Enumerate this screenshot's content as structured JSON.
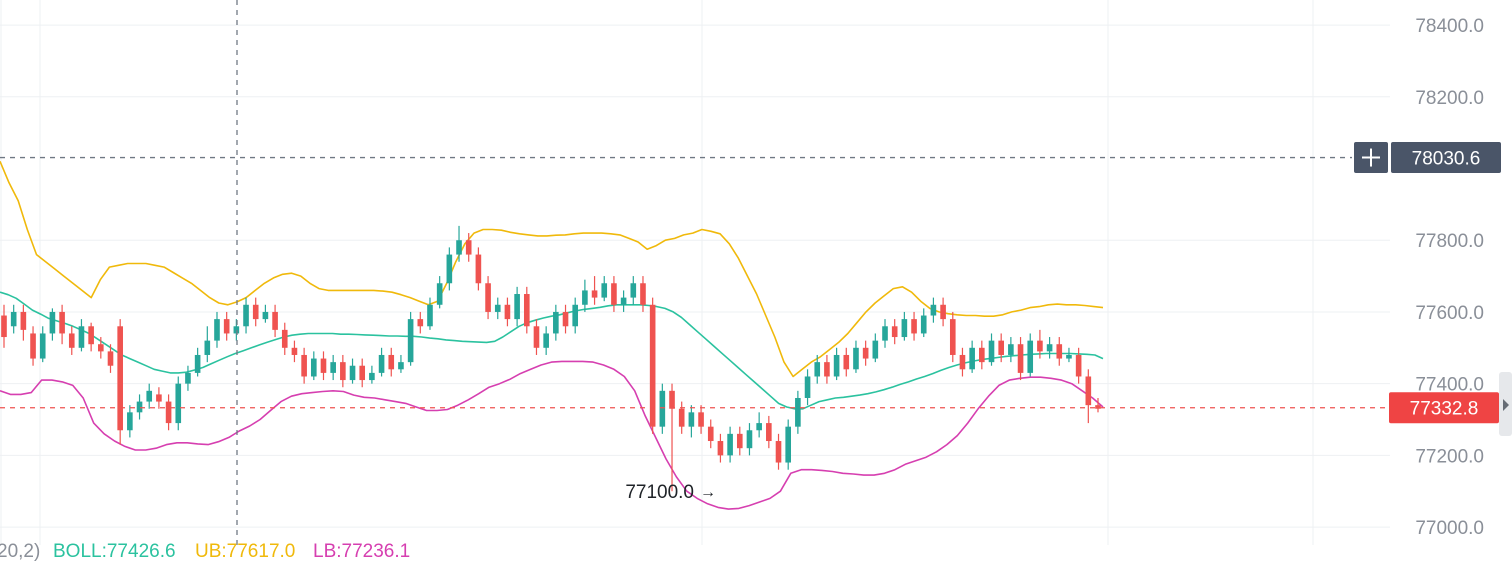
{
  "colors": {
    "up": "#26a69a",
    "down": "#ef5350",
    "boll": "#2bc29f",
    "ub": "#f0b90b",
    "lb": "#d63fb0",
    "crosshair_badge": "#4a5568",
    "last_price_badge": "#ef4444",
    "grid": "#eef0f3",
    "axis_text": "#8a8f98"
  },
  "price_axis": {
    "labels": [
      "78400.0",
      "78200.0",
      "77800.0",
      "77600.0",
      "77400.0",
      "77200.0",
      "77000.0"
    ],
    "ticks": [
      78400,
      78200,
      77800,
      77600,
      77400,
      77200,
      77000
    ],
    "range": [
      76950,
      78470
    ]
  },
  "crosshair": {
    "price": 78030.6,
    "label": "78030.6",
    "plus_icon": "plus-icon"
  },
  "last_price": {
    "price": 77332.8,
    "label": "77332.8"
  },
  "low_marker": {
    "price": 77100.0,
    "label": "77100.0",
    "arrow": "→"
  },
  "legend": {
    "params": "20,2)",
    "boll": "BOLL:77426.6",
    "ub": "UB:77617.0",
    "lb": "LB:77236.1"
  },
  "chart_data": {
    "type": "candlestick",
    "indicator": "BOLL",
    "series": [
      {
        "name": "BOLL",
        "values": [
          77655,
          77648,
          77638,
          77622,
          77605,
          77594,
          77582,
          77575,
          77568,
          77560,
          77550,
          77540,
          77525,
          77510,
          77495,
          77480,
          77470,
          77460,
          77450,
          77440,
          77435,
          77430,
          77430,
          77432,
          77438,
          77445,
          77455,
          77465,
          77475,
          77484,
          77492,
          77500,
          77508,
          77516,
          77523,
          77530,
          77535,
          77538,
          77540,
          77540,
          77540,
          77540,
          77538,
          77538,
          77537,
          77536,
          77535,
          77534,
          77533,
          77533,
          77532,
          77532,
          77530,
          77527,
          77525,
          77522,
          77520,
          77518,
          77517,
          77516,
          77515,
          77518,
          77530,
          77545,
          77560,
          77570,
          77577,
          77583,
          77588,
          77592,
          77598,
          77603,
          77607,
          77610,
          77613,
          77617,
          77620,
          77620,
          77620,
          77620,
          77618,
          77615,
          77610,
          77600,
          77585,
          77565,
          77545,
          77525,
          77505,
          77485,
          77465,
          77445,
          77425,
          77405,
          77385,
          77365,
          77345,
          77335,
          77330,
          77330,
          77340,
          77350,
          77355,
          77360,
          77362,
          77365,
          77368,
          77372,
          77377,
          77383,
          77390,
          77398,
          77405,
          77413,
          77420,
          77428,
          77437,
          77445,
          77452,
          77458,
          77463,
          77467,
          77470,
          77473,
          77476,
          77478,
          77480,
          77482,
          77483,
          77484,
          77484,
          77484,
          77484,
          77483,
          77482,
          77480,
          77470
        ]
      },
      {
        "name": "UB",
        "values": [
          78020,
          77960,
          77910,
          77830,
          77760,
          77740,
          77720,
          77700,
          77680,
          77660,
          77640,
          77690,
          77725,
          77730,
          77735,
          77735,
          77735,
          77730,
          77725,
          77710,
          77695,
          77680,
          77660,
          77640,
          77625,
          77620,
          77628,
          77640,
          77660,
          77680,
          77695,
          77705,
          77708,
          77700,
          77680,
          77665,
          77660,
          77660,
          77660,
          77660,
          77660,
          77660,
          77658,
          77655,
          77648,
          77640,
          77630,
          77620,
          77630,
          77680,
          77740,
          77790,
          77820,
          77830,
          77830,
          77828,
          77822,
          77818,
          77815,
          77812,
          77812,
          77814,
          77815,
          77818,
          77820,
          77820,
          77820,
          77818,
          77815,
          77805,
          77795,
          77775,
          77785,
          77800,
          77805,
          77815,
          77820,
          77830,
          77825,
          77818,
          77790,
          77750,
          77700,
          77650,
          77590,
          77530,
          77460,
          77420,
          77440,
          77460,
          77475,
          77495,
          77515,
          77540,
          77570,
          77600,
          77625,
          77645,
          77665,
          77670,
          77655,
          77630,
          77610,
          77600,
          77595,
          77592,
          77590,
          77590,
          77588,
          77588,
          77592,
          77600,
          77605,
          77612,
          77615,
          77620,
          77622,
          77620,
          77620,
          77618,
          77615,
          77612
        ]
      },
      {
        "name": "LB",
        "values": [
          77380,
          77370,
          77370,
          77375,
          77410,
          77410,
          77405,
          77395,
          77360,
          77290,
          77260,
          77240,
          77225,
          77215,
          77215,
          77220,
          77230,
          77235,
          77235,
          77232,
          77230,
          77238,
          77250,
          77268,
          77282,
          77300,
          77325,
          77350,
          77365,
          77372,
          77375,
          77378,
          77380,
          77378,
          77368,
          77362,
          77360,
          77355,
          77350,
          77345,
          77335,
          77325,
          77325,
          77328,
          77340,
          77355,
          77372,
          77390,
          77400,
          77412,
          77428,
          77440,
          77452,
          77460,
          77462,
          77462,
          77462,
          77460,
          77452,
          77440,
          77420,
          77380,
          77310,
          77250,
          77190,
          77140,
          77100,
          77080,
          77065,
          77055,
          77050,
          77052,
          77060,
          77070,
          77080,
          77100,
          77150,
          77160,
          77160,
          77158,
          77155,
          77150,
          77148,
          77145,
          77145,
          77150,
          77160,
          77175,
          77185,
          77195,
          77210,
          77230,
          77255,
          77290,
          77330,
          77365,
          77395,
          77410,
          77415,
          77418,
          77418,
          77415,
          77410,
          77400,
          77380,
          77360,
          77335
        ]
      }
    ],
    "candles_open_close_high_low": [
      [
        77590,
        77530,
        77620,
        77500
      ],
      [
        77560,
        77600,
        77620,
        77540
      ],
      [
        77600,
        77550,
        77620,
        77520
      ],
      [
        77540,
        77470,
        77560,
        77450
      ],
      [
        77470,
        77540,
        77560,
        77460
      ],
      [
        77540,
        77600,
        77610,
        77520
      ],
      [
        77600,
        77540,
        77620,
        77510
      ],
      [
        77540,
        77500,
        77560,
        77480
      ],
      [
        77500,
        77560,
        77580,
        77490
      ],
      [
        77560,
        77510,
        77570,
        77490
      ],
      [
        77510,
        77490,
        77530,
        77470
      ],
      [
        77490,
        77450,
        77510,
        77430
      ],
      [
        77560,
        77270,
        77580,
        77230
      ],
      [
        77270,
        77320,
        77340,
        77250
      ],
      [
        77320,
        77350,
        77370,
        77300
      ],
      [
        77350,
        77380,
        77400,
        77330
      ],
      [
        77370,
        77350,
        77390,
        77330
      ],
      [
        77350,
        77290,
        77370,
        77270
      ],
      [
        77290,
        77400,
        77420,
        77270
      ],
      [
        77400,
        77430,
        77450,
        77380
      ],
      [
        77430,
        77480,
        77500,
        77420
      ],
      [
        77480,
        77520,
        77560,
        77460
      ],
      [
        77520,
        77580,
        77600,
        77500
      ],
      [
        77580,
        77540,
        77600,
        77520
      ],
      [
        77540,
        77560,
        77580,
        77520
      ],
      [
        77560,
        77620,
        77640,
        77540
      ],
      [
        77620,
        77580,
        77640,
        77560
      ],
      [
        77580,
        77600,
        77620,
        77570
      ],
      [
        77600,
        77550,
        77620,
        77530
      ],
      [
        77550,
        77500,
        77570,
        77480
      ],
      [
        77500,
        77480,
        77520,
        77460
      ],
      [
        77480,
        77420,
        77500,
        77400
      ],
      [
        77420,
        77470,
        77490,
        77410
      ],
      [
        77470,
        77430,
        77490,
        77410
      ],
      [
        77430,
        77460,
        77480,
        77410
      ],
      [
        77460,
        77410,
        77480,
        77390
      ],
      [
        77410,
        77450,
        77470,
        77400
      ],
      [
        77450,
        77410,
        77470,
        77390
      ],
      [
        77410,
        77430,
        77450,
        77400
      ],
      [
        77430,
        77480,
        77500,
        77420
      ],
      [
        77480,
        77440,
        77500,
        77420
      ],
      [
        77440,
        77460,
        77480,
        77430
      ],
      [
        77460,
        77580,
        77600,
        77450
      ],
      [
        77580,
        77560,
        77600,
        77540
      ],
      [
        77560,
        77620,
        77640,
        77550
      ],
      [
        77620,
        77680,
        77700,
        77610
      ],
      [
        77680,
        77760,
        77780,
        77660
      ],
      [
        77760,
        77800,
        77840,
        77740
      ],
      [
        77800,
        77760,
        77820,
        77740
      ],
      [
        77760,
        77680,
        77780,
        77660
      ],
      [
        77680,
        77600,
        77700,
        77580
      ],
      [
        77600,
        77620,
        77640,
        77580
      ],
      [
        77620,
        77580,
        77640,
        77560
      ],
      [
        77580,
        77650,
        77670,
        77560
      ],
      [
        77650,
        77560,
        77670,
        77540
      ],
      [
        77560,
        77500,
        77580,
        77480
      ],
      [
        77500,
        77540,
        77560,
        77480
      ],
      [
        77540,
        77600,
        77620,
        77520
      ],
      [
        77600,
        77560,
        77620,
        77540
      ],
      [
        77560,
        77620,
        77640,
        77540
      ],
      [
        77620,
        77660,
        77690,
        77600
      ],
      [
        77660,
        77640,
        77700,
        77620
      ],
      [
        77640,
        77680,
        77700,
        77630
      ],
      [
        77680,
        77620,
        77700,
        77600
      ],
      [
        77620,
        77640,
        77660,
        77600
      ],
      [
        77640,
        77680,
        77700,
        77620
      ],
      [
        77680,
        77620,
        77700,
        77600
      ],
      [
        77620,
        77280,
        77640,
        77260
      ],
      [
        77280,
        77380,
        77400,
        77260
      ],
      [
        77380,
        77330,
        77400,
        77100
      ],
      [
        77330,
        77280,
        77350,
        77260
      ],
      [
        77280,
        77320,
        77340,
        77250
      ],
      [
        77320,
        77280,
        77340,
        77260
      ],
      [
        77280,
        77240,
        77300,
        77220
      ],
      [
        77240,
        77200,
        77260,
        77180
      ],
      [
        77200,
        77260,
        77280,
        77180
      ],
      [
        77260,
        77220,
        77280,
        77200
      ],
      [
        77220,
        77270,
        77290,
        77200
      ],
      [
        77270,
        77290,
        77320,
        77250
      ],
      [
        77290,
        77240,
        77310,
        77220
      ],
      [
        77240,
        77180,
        77260,
        77160
      ],
      [
        77180,
        77280,
        77300,
        77160
      ],
      [
        77280,
        77360,
        77380,
        77260
      ],
      [
        77360,
        77420,
        77440,
        77340
      ],
      [
        77420,
        77460,
        77480,
        77400
      ],
      [
        77460,
        77420,
        77480,
        77400
      ],
      [
        77420,
        77480,
        77500,
        77410
      ],
      [
        77480,
        77440,
        77500,
        77420
      ],
      [
        77440,
        77500,
        77520,
        77430
      ],
      [
        77500,
        77470,
        77520,
        77450
      ],
      [
        77470,
        77520,
        77540,
        77460
      ],
      [
        77520,
        77560,
        77580,
        77500
      ],
      [
        77560,
        77530,
        77580,
        77510
      ],
      [
        77530,
        77580,
        77600,
        77520
      ],
      [
        77580,
        77540,
        77600,
        77520
      ],
      [
        77540,
        77590,
        77610,
        77530
      ],
      [
        77590,
        77620,
        77640,
        77570
      ],
      [
        77620,
        77580,
        77640,
        77560
      ],
      [
        77580,
        77480,
        77600,
        77460
      ],
      [
        77480,
        77440,
        77500,
        77420
      ],
      [
        77440,
        77500,
        77520,
        77430
      ],
      [
        77500,
        77460,
        77520,
        77440
      ],
      [
        77460,
        77520,
        77540,
        77450
      ],
      [
        77520,
        77480,
        77540,
        77460
      ],
      [
        77480,
        77510,
        77530,
        77460
      ],
      [
        77510,
        77430,
        77530,
        77410
      ],
      [
        77430,
        77520,
        77540,
        77420
      ],
      [
        77520,
        77490,
        77550,
        77470
      ],
      [
        77490,
        77510,
        77530,
        77470
      ],
      [
        77510,
        77470,
        77530,
        77450
      ],
      [
        77470,
        77480,
        77500,
        77460
      ],
      [
        77480,
        77420,
        77500,
        77400
      ],
      [
        77420,
        77340,
        77440,
        77290
      ],
      [
        77340,
        77330,
        77360,
        77320
      ]
    ],
    "ylim": [
      76950,
      78470
    ],
    "grid": true,
    "ylabel": "",
    "xlabel": "",
    "title": ""
  }
}
